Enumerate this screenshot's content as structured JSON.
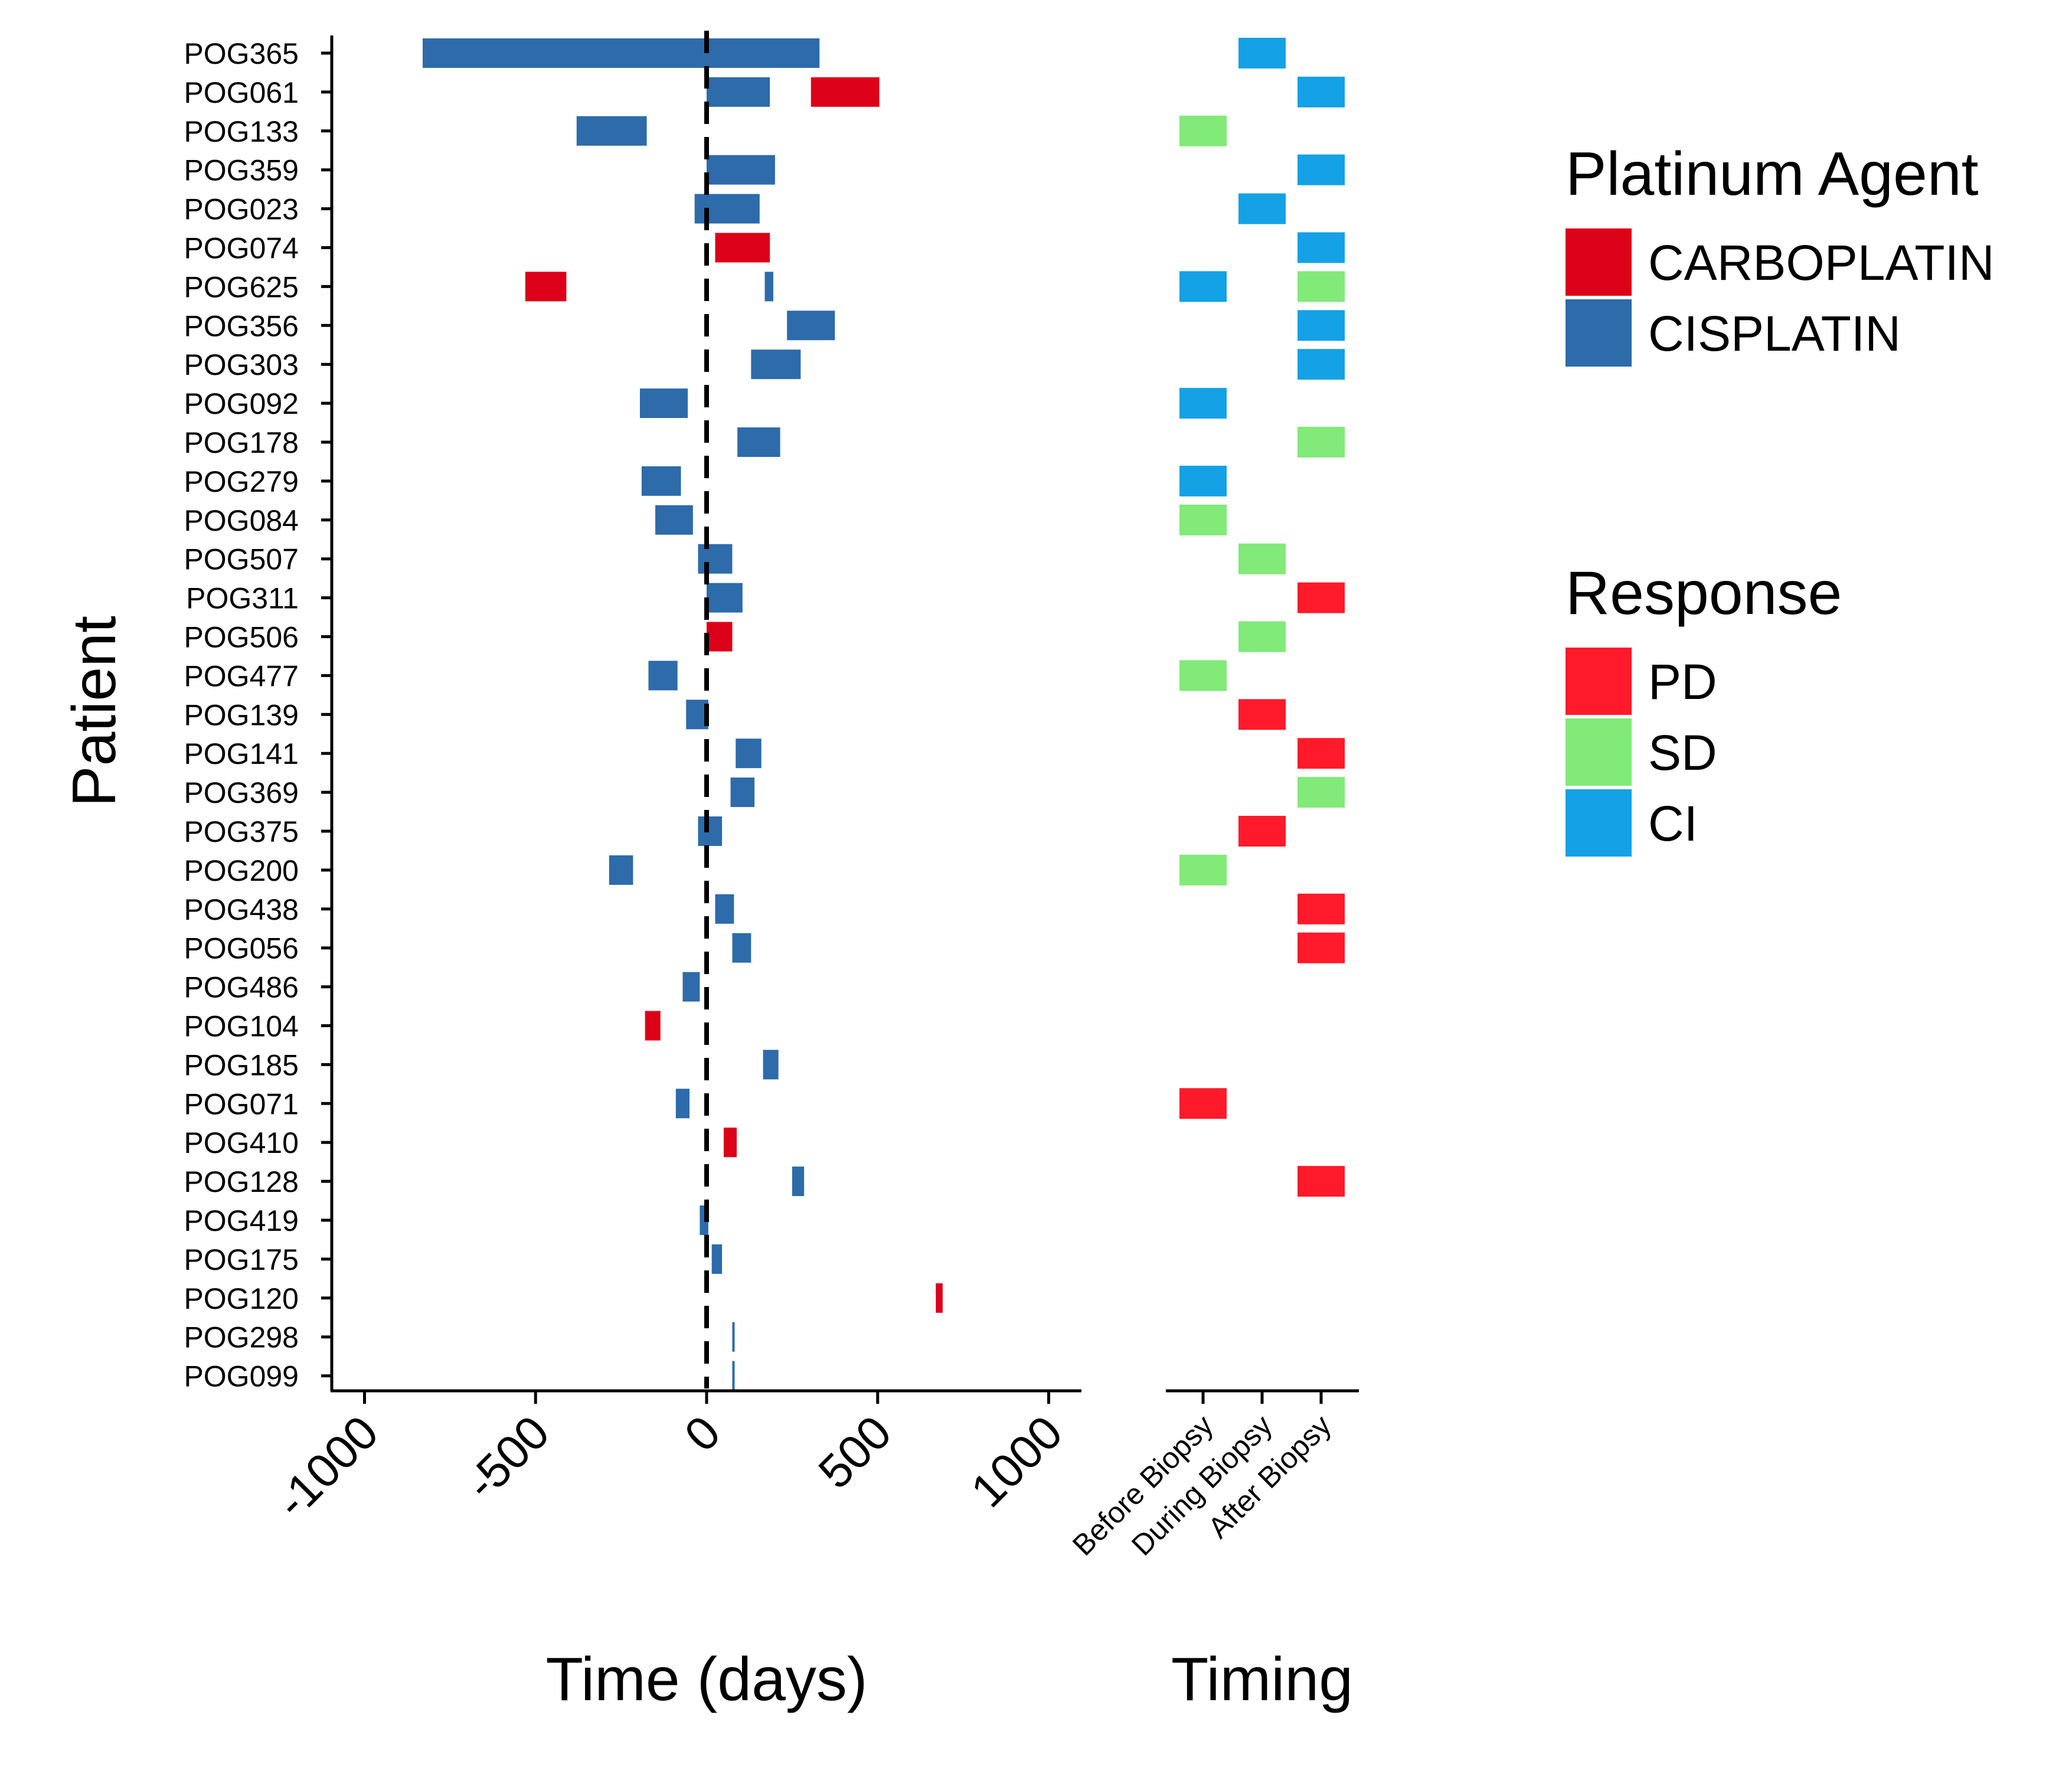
{
  "chart_data": [
    {
      "type": "bar",
      "subtype": "horizontal-range",
      "ylabel": "Patient",
      "xlabel": "Time (days)",
      "xlim": [
        -1100,
        1100
      ],
      "x_ticks": [
        -1000,
        -500,
        0,
        500,
        1000
      ],
      "x_tick_labels": [
        "-1000",
        "-500",
        "0",
        "500",
        "1000"
      ],
      "reference_line": {
        "x": 0,
        "style": "dashed"
      },
      "grid": false,
      "categories": [
        "POG365",
        "POG061",
        "POG133",
        "POG359",
        "POG023",
        "POG074",
        "POG625",
        "POG356",
        "POG303",
        "POG092",
        "POG178",
        "POG279",
        "POG084",
        "POG507",
        "POG311",
        "POG506",
        "POG477",
        "POG139",
        "POG141",
        "POG369",
        "POG375",
        "POG200",
        "POG438",
        "POG056",
        "POG486",
        "POG104",
        "POG185",
        "POG071",
        "POG410",
        "POG128",
        "POG419",
        "POG175",
        "POG120",
        "POG298",
        "POG099"
      ],
      "series": [
        {
          "name": "CISPLATIN",
          "color": "#2D6BAA",
          "bars": [
            {
              "patient": "POG365",
              "start": -830,
              "end": 330
            },
            {
              "patient": "POG061",
              "start": 0,
              "end": 185
            },
            {
              "patient": "POG133",
              "start": -380,
              "end": -175
            },
            {
              "patient": "POG359",
              "start": 0,
              "end": 200
            },
            {
              "patient": "POG023",
              "start": -35,
              "end": 155
            },
            {
              "patient": "POG625",
              "start": 170,
              "end": 195
            },
            {
              "patient": "POG356",
              "start": 235,
              "end": 375
            },
            {
              "patient": "POG303",
              "start": 130,
              "end": 275
            },
            {
              "patient": "POG092",
              "start": -195,
              "end": -55
            },
            {
              "patient": "POG178",
              "start": 90,
              "end": 215
            },
            {
              "patient": "POG279",
              "start": -190,
              "end": -75
            },
            {
              "patient": "POG084",
              "start": -150,
              "end": -40
            },
            {
              "patient": "POG507",
              "start": -25,
              "end": 75
            },
            {
              "patient": "POG311",
              "start": 0,
              "end": 105
            },
            {
              "patient": "POG477",
              "start": -170,
              "end": -85
            },
            {
              "patient": "POG139",
              "start": -60,
              "end": 5
            },
            {
              "patient": "POG141",
              "start": 85,
              "end": 160
            },
            {
              "patient": "POG369",
              "start": 70,
              "end": 140
            },
            {
              "patient": "POG375",
              "start": -25,
              "end": 45
            },
            {
              "patient": "POG200",
              "start": -285,
              "end": -215
            },
            {
              "patient": "POG438",
              "start": 25,
              "end": 80
            },
            {
              "patient": "POG056",
              "start": 75,
              "end": 130
            },
            {
              "patient": "POG486",
              "start": -70,
              "end": -20
            },
            {
              "patient": "POG185",
              "start": 165,
              "end": 210
            },
            {
              "patient": "POG071",
              "start": -90,
              "end": -50
            },
            {
              "patient": "POG128",
              "start": 250,
              "end": 285
            },
            {
              "patient": "POG419",
              "start": -20,
              "end": 5
            },
            {
              "patient": "POG175",
              "start": 15,
              "end": 45
            },
            {
              "patient": "POG298",
              "start": 75,
              "end": 82
            },
            {
              "patient": "POG099",
              "start": 75,
              "end": 82
            }
          ]
        },
        {
          "name": "CARBOPLATIN",
          "color": "#DC0019",
          "bars": [
            {
              "patient": "POG061",
              "start": 305,
              "end": 505
            },
            {
              "patient": "POG074",
              "start": 25,
              "end": 185
            },
            {
              "patient": "POG625",
              "start": -530,
              "end": -410
            },
            {
              "patient": "POG506",
              "start": 0,
              "end": 75
            },
            {
              "patient": "POG104",
              "start": -180,
              "end": -135
            },
            {
              "patient": "POG410",
              "start": 50,
              "end": 88
            },
            {
              "patient": "POG120",
              "start": 670,
              "end": 690
            }
          ]
        }
      ]
    },
    {
      "type": "heatmap",
      "xlabel": "Timing",
      "x_categories": [
        "Before Biopsy",
        "During Biopsy",
        "After Biopsy"
      ],
      "grid": false,
      "cells": [
        {
          "patient": "POG365",
          "timing": "During Biopsy",
          "response": "CI"
        },
        {
          "patient": "POG061",
          "timing": "After Biopsy",
          "response": "CI"
        },
        {
          "patient": "POG133",
          "timing": "Before Biopsy",
          "response": "SD"
        },
        {
          "patient": "POG359",
          "timing": "After Biopsy",
          "response": "CI"
        },
        {
          "patient": "POG023",
          "timing": "During Biopsy",
          "response": "CI"
        },
        {
          "patient": "POG074",
          "timing": "After Biopsy",
          "response": "CI"
        },
        {
          "patient": "POG625",
          "timing": "Before Biopsy",
          "response": "CI"
        },
        {
          "patient": "POG625",
          "timing": "After Biopsy",
          "response": "SD"
        },
        {
          "patient": "POG356",
          "timing": "After Biopsy",
          "response": "CI"
        },
        {
          "patient": "POG303",
          "timing": "After Biopsy",
          "response": "CI"
        },
        {
          "patient": "POG092",
          "timing": "Before Biopsy",
          "response": "CI"
        },
        {
          "patient": "POG178",
          "timing": "After Biopsy",
          "response": "SD"
        },
        {
          "patient": "POG279",
          "timing": "Before Biopsy",
          "response": "CI"
        },
        {
          "patient": "POG084",
          "timing": "Before Biopsy",
          "response": "SD"
        },
        {
          "patient": "POG507",
          "timing": "During Biopsy",
          "response": "SD"
        },
        {
          "patient": "POG311",
          "timing": "After Biopsy",
          "response": "PD"
        },
        {
          "patient": "POG506",
          "timing": "During Biopsy",
          "response": "SD"
        },
        {
          "patient": "POG477",
          "timing": "Before Biopsy",
          "response": "SD"
        },
        {
          "patient": "POG139",
          "timing": "During Biopsy",
          "response": "PD"
        },
        {
          "patient": "POG141",
          "timing": "After Biopsy",
          "response": "PD"
        },
        {
          "patient": "POG369",
          "timing": "After Biopsy",
          "response": "SD"
        },
        {
          "patient": "POG375",
          "timing": "During Biopsy",
          "response": "PD"
        },
        {
          "patient": "POG200",
          "timing": "Before Biopsy",
          "response": "SD"
        },
        {
          "patient": "POG438",
          "timing": "After Biopsy",
          "response": "PD"
        },
        {
          "patient": "POG056",
          "timing": "After Biopsy",
          "response": "PD"
        },
        {
          "patient": "POG071",
          "timing": "Before Biopsy",
          "response": "PD"
        },
        {
          "patient": "POG128",
          "timing": "After Biopsy",
          "response": "PD"
        }
      ]
    }
  ],
  "legends": [
    {
      "title": "Platinum Agent",
      "placement": "right",
      "items": [
        {
          "label": "CARBOPLATIN",
          "color": "#DC0019"
        },
        {
          "label": "CISPLATIN",
          "color": "#2D6BAA"
        }
      ]
    },
    {
      "title": "Response",
      "placement": "right",
      "items": [
        {
          "label": "PD",
          "color": "#FF1A2B"
        },
        {
          "label": "SD",
          "color": "#81EA79"
        },
        {
          "label": "CI",
          "color": "#14A1E6"
        }
      ]
    }
  ]
}
